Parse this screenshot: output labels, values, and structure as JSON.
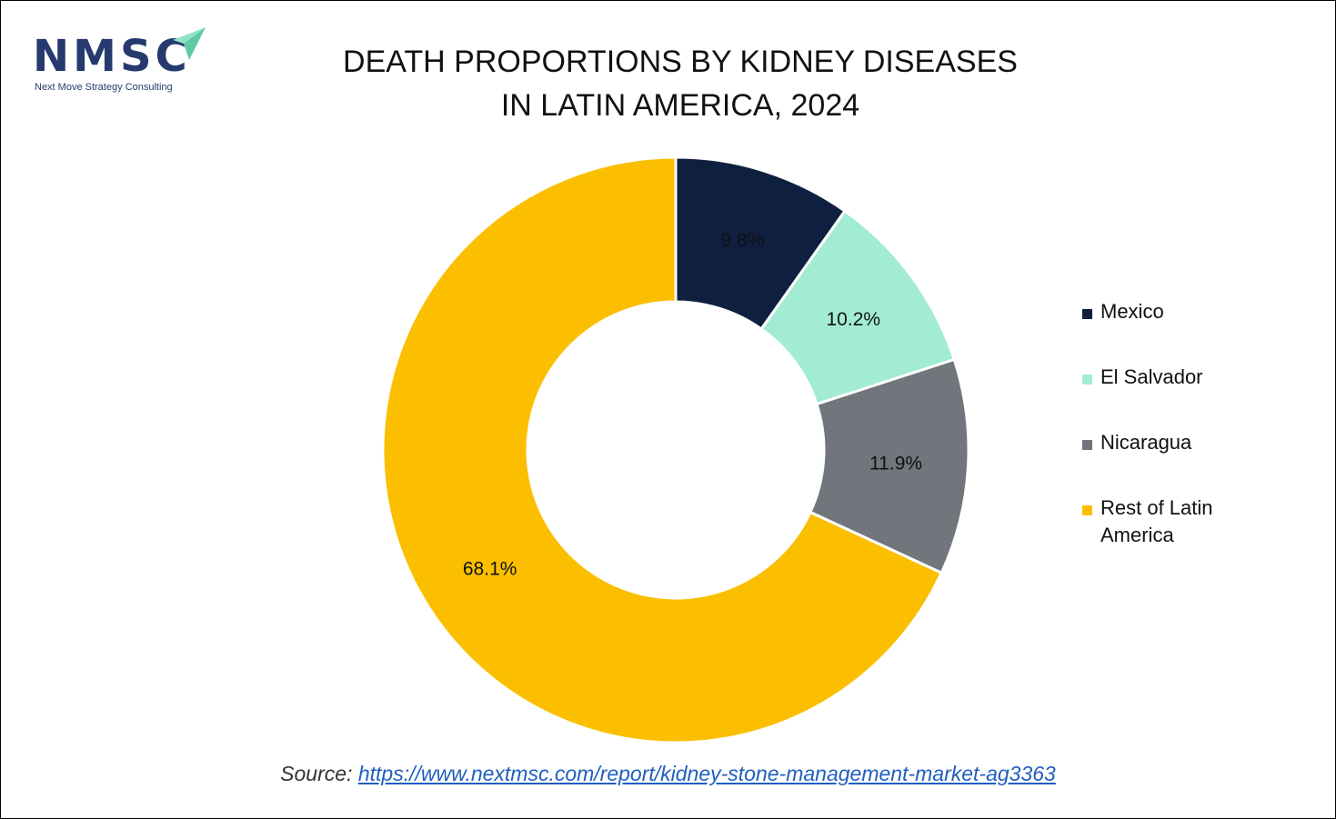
{
  "logo": {
    "text": "NMSC",
    "subtitle": "Next Move Strategy Consulting",
    "colors": {
      "text": "#263a6e",
      "arrow": "#8ee3c8"
    }
  },
  "title": {
    "line1": "DEATH PROPORTIONS BY KIDNEY DISEASES",
    "line2": "IN LATIN AMERICA, 2024"
  },
  "chart_data": {
    "type": "pie",
    "variant": "donut",
    "title": "DEATH PROPORTIONS BY KIDNEY DISEASES IN LATIN AMERICA, 2024",
    "legend_position": "right",
    "slices": [
      {
        "label": "Mexico",
        "value": 9.8,
        "display": "9.8%",
        "color": "#0f1f3f"
      },
      {
        "label": "El Salvador",
        "value": 10.2,
        "display": "10.2%",
        "color": "#a3ecd4"
      },
      {
        "label": "Nicaragua",
        "value": 11.9,
        "display": "11.9%",
        "color": "#71757c"
      },
      {
        "label": "Rest of Latin America",
        "value": 68.1,
        "display": "68.1%",
        "color": "#fbbf00"
      }
    ]
  },
  "legend": {
    "items": [
      {
        "label": "Mexico",
        "color": "#0f1f3f"
      },
      {
        "label": "El Salvador",
        "color": "#a3ecd4"
      },
      {
        "label": "Nicaragua",
        "color": "#71757c"
      },
      {
        "label": "Rest of Latin America",
        "color": "#fbbf00"
      }
    ]
  },
  "source": {
    "prefix": "Source: ",
    "link_text": "https://www.nextmsc.com/report/kidney-stone-management-market-ag3363"
  }
}
